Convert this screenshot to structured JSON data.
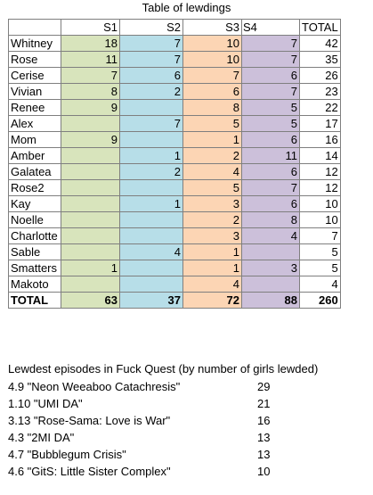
{
  "title": "Table of lewdings",
  "colors": {
    "s1": "#d8e4bc",
    "s2": "#b7dee8",
    "s3": "#fcd5b4",
    "s4": "#ccc0da",
    "border": "#7f7f7f"
  },
  "table": {
    "headers": {
      "name": "",
      "s1": "S1",
      "s2": "S2",
      "s3": "S3",
      "s4": "S4",
      "total": "TOTAL"
    },
    "rows": [
      {
        "name": "Whitney",
        "s1": "18",
        "s2": "7",
        "s3": "10",
        "s4": "7",
        "total": "42"
      },
      {
        "name": "Rose",
        "s1": "11",
        "s2": "7",
        "s3": "10",
        "s4": "7",
        "total": "35"
      },
      {
        "name": "Cerise",
        "s1": "7",
        "s2": "6",
        "s3": "7",
        "s4": "6",
        "total": "26"
      },
      {
        "name": "Vivian",
        "s1": "8",
        "s2": "2",
        "s3": "6",
        "s4": "7",
        "total": "23"
      },
      {
        "name": "Renee",
        "s1": "9",
        "s2": "",
        "s3": "8",
        "s4": "5",
        "total": "22"
      },
      {
        "name": "Alex",
        "s1": "",
        "s2": "7",
        "s3": "5",
        "s4": "5",
        "total": "17"
      },
      {
        "name": "Mom",
        "s1": "9",
        "s2": "",
        "s3": "1",
        "s4": "6",
        "total": "16"
      },
      {
        "name": "Amber",
        "s1": "",
        "s2": "1",
        "s3": "2",
        "s4": "11",
        "total": "14"
      },
      {
        "name": "Galatea",
        "s1": "",
        "s2": "2",
        "s3": "4",
        "s4": "6",
        "total": "12"
      },
      {
        "name": "Rose2",
        "s1": "",
        "s2": "",
        "s3": "5",
        "s4": "7",
        "total": "12"
      },
      {
        "name": "Kay",
        "s1": "",
        "s2": "1",
        "s3": "3",
        "s4": "6",
        "total": "10"
      },
      {
        "name": "Noelle",
        "s1": "",
        "s2": "",
        "s3": "2",
        "s4": "8",
        "total": "10"
      },
      {
        "name": "Charlotte",
        "s1": "",
        "s2": "",
        "s3": "3",
        "s4": "4",
        "total": "7"
      },
      {
        "name": "Sable",
        "s1": "",
        "s2": "4",
        "s3": "1",
        "s4": "",
        "total": "5"
      },
      {
        "name": "Smatters",
        "s1": "1",
        "s2": "",
        "s3": "1",
        "s4": "3",
        "total": "5"
      },
      {
        "name": "Makoto",
        "s1": "",
        "s2": "",
        "s3": "4",
        "s4": "",
        "total": "4"
      }
    ],
    "totals": {
      "name": "TOTAL",
      "s1": "63",
      "s2": "37",
      "s3": "72",
      "s4": "88",
      "total": "260"
    }
  },
  "episodes": {
    "heading": "Lewdest episodes in Fuck Quest (by number of girls lewded)",
    "items": [
      {
        "title": "4.9 \"Neon Weeaboo Catachresis\"",
        "count": "29"
      },
      {
        "title": "1.10 \"UMI DA\"",
        "count": "21"
      },
      {
        "title": "3.13 \"Rose-Sama: Love is War\"",
        "count": "16"
      },
      {
        "title": "4.3 \"2MI DA\"",
        "count": "13"
      },
      {
        "title": "4.7 \"Bubblegum Crisis\"",
        "count": "13"
      },
      {
        "title": "4.6 \"GitS: Little Sister Complex\"",
        "count": "10"
      }
    ]
  }
}
